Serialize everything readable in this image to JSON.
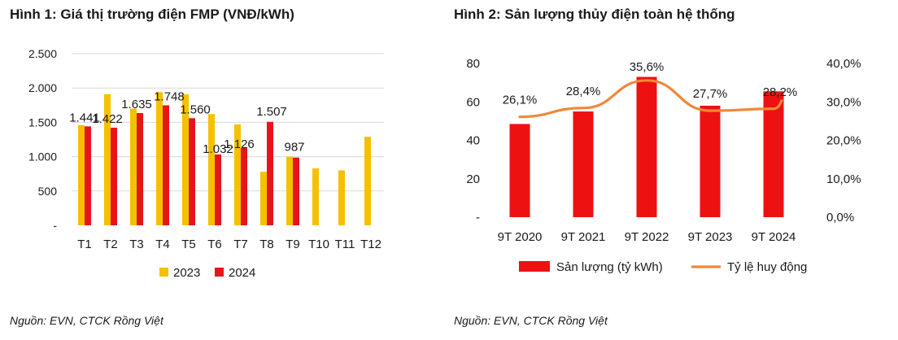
{
  "colors": {
    "y2023": "#f5c000",
    "y2024": "#e8141c",
    "bar2": "#ee1111",
    "line2": "#f0883a",
    "grid": "#d9d9d9",
    "axis": "#7f7f7f"
  },
  "panel1": {
    "title": "Hình 1: Giá thị trường điện FMP (VNĐ/kWh)",
    "source": "Nguồn: EVN, CTCK Rồng Việt"
  },
  "panel2": {
    "title": "Hình 2: Sản lượng thủy điện toàn hệ thống",
    "source": "Nguồn: EVN, CTCK Rồng Việt"
  },
  "chart_data": [
    {
      "type": "bar",
      "title": "Hình 1: Giá thị trường điện FMP (VNĐ/kWh)",
      "categories": [
        "T1",
        "T2",
        "T3",
        "T4",
        "T5",
        "T6",
        "T7",
        "T8",
        "T9",
        "T10",
        "T11",
        "T12"
      ],
      "series": [
        {
          "name": "2023",
          "values": [
            1460,
            1910,
            1700,
            1940,
            1910,
            1620,
            1470,
            780,
            1000,
            830,
            800,
            1290
          ],
          "labels": []
        },
        {
          "name": "2024",
          "values": [
            1441,
            1422,
            1635,
            1748,
            1560,
            1032,
            1126,
            1507,
            987,
            null,
            null,
            null
          ],
          "labels": [
            "1.441",
            "1.422",
            "1.635",
            "1.748",
            "1.560",
            "1.032",
            "1.126",
            "1.507",
            "987",
            "",
            "",
            ""
          ]
        }
      ],
      "ylim": [
        0,
        2500
      ],
      "yticks": [
        0,
        500,
        1000,
        1500,
        2000,
        2500
      ],
      "ytick_labels": [
        "-",
        "500",
        "1.000",
        "1.500",
        "2.000",
        "2.500"
      ],
      "grid": true,
      "legend": "bottom"
    },
    {
      "type": "bar",
      "title": "Hình 2: Sản lượng thủy điện toàn hệ thống",
      "categories": [
        "9T 2020",
        "9T 2021",
        "9T 2022",
        "9T 2023",
        "9T 2024"
      ],
      "series": [
        {
          "name": "Sản lượng (tỷ kWh)",
          "type": "bar",
          "axis": "left",
          "values": [
            48.5,
            55,
            73,
            58,
            65.5
          ]
        },
        {
          "name": "Tỷ lệ huy động",
          "type": "line",
          "axis": "right",
          "values": [
            26.1,
            28.4,
            35.6,
            27.7,
            28.2
          ],
          "labels": [
            "26,1%",
            "28,4%",
            "35,6%",
            "27,7%",
            "28,2%"
          ]
        }
      ],
      "ylim": [
        0,
        80
      ],
      "yticks": [
        0,
        20,
        40,
        60,
        80
      ],
      "ytick_labels": [
        "-",
        "20",
        "40",
        "60",
        "80"
      ],
      "y2lim": [
        0,
        40
      ],
      "y2ticks": [
        0,
        10,
        20,
        30,
        40
      ],
      "y2tick_labels": [
        "0,0%",
        "10,0%",
        "20,0%",
        "30,0%",
        "40,0%"
      ],
      "grid": false,
      "legend": "bottom"
    }
  ]
}
